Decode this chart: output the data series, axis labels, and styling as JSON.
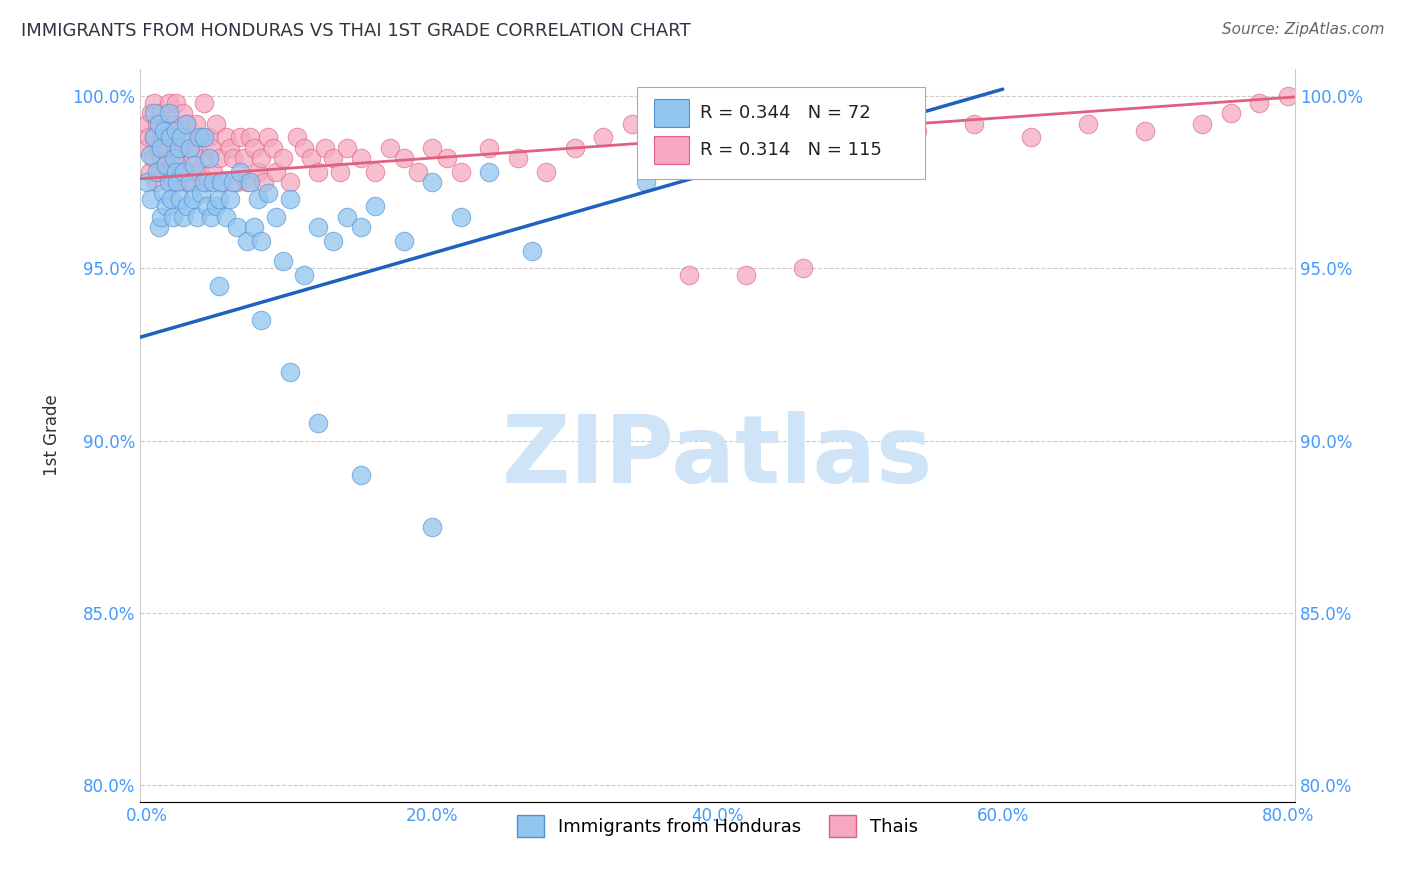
{
  "title": "IMMIGRANTS FROM HONDURAS VS THAI 1ST GRADE CORRELATION CHART",
  "source": "Source: ZipAtlas.com",
  "ylabel": "1st Grade",
  "xlim": [
    -0.005,
    0.805
  ],
  "ylim": [
    0.795,
    1.008
  ],
  "xtick_labels": [
    "0.0%",
    "20.0%",
    "40.0%",
    "60.0%",
    "80.0%"
  ],
  "xtick_vals": [
    0.0,
    0.2,
    0.4,
    0.6,
    0.8
  ],
  "ytick_labels": [
    "80.0%",
    "85.0%",
    "90.0%",
    "95.0%",
    "100.0%"
  ],
  "ytick_vals": [
    0.8,
    0.85,
    0.9,
    0.95,
    1.0
  ],
  "honduras_color": "#92C5F0",
  "thai_color": "#F5A8C0",
  "honduras_edge_color": "#5090D0",
  "thai_edge_color": "#E06080",
  "honduras_line_color": "#2060C0",
  "thai_line_color": "#E06080",
  "R_honduras": 0.344,
  "N_honduras": 72,
  "R_thai": 0.314,
  "N_thai": 115,
  "watermark_text": "ZIPatlas",
  "watermark_color": "#D0E4F8",
  "background_color": "#FFFFFF",
  "grid_color": "#CCCCCC",
  "title_color": "#333344",
  "source_color": "#666666",
  "tick_color": "#4499FF",
  "ylabel_color": "#333333"
}
